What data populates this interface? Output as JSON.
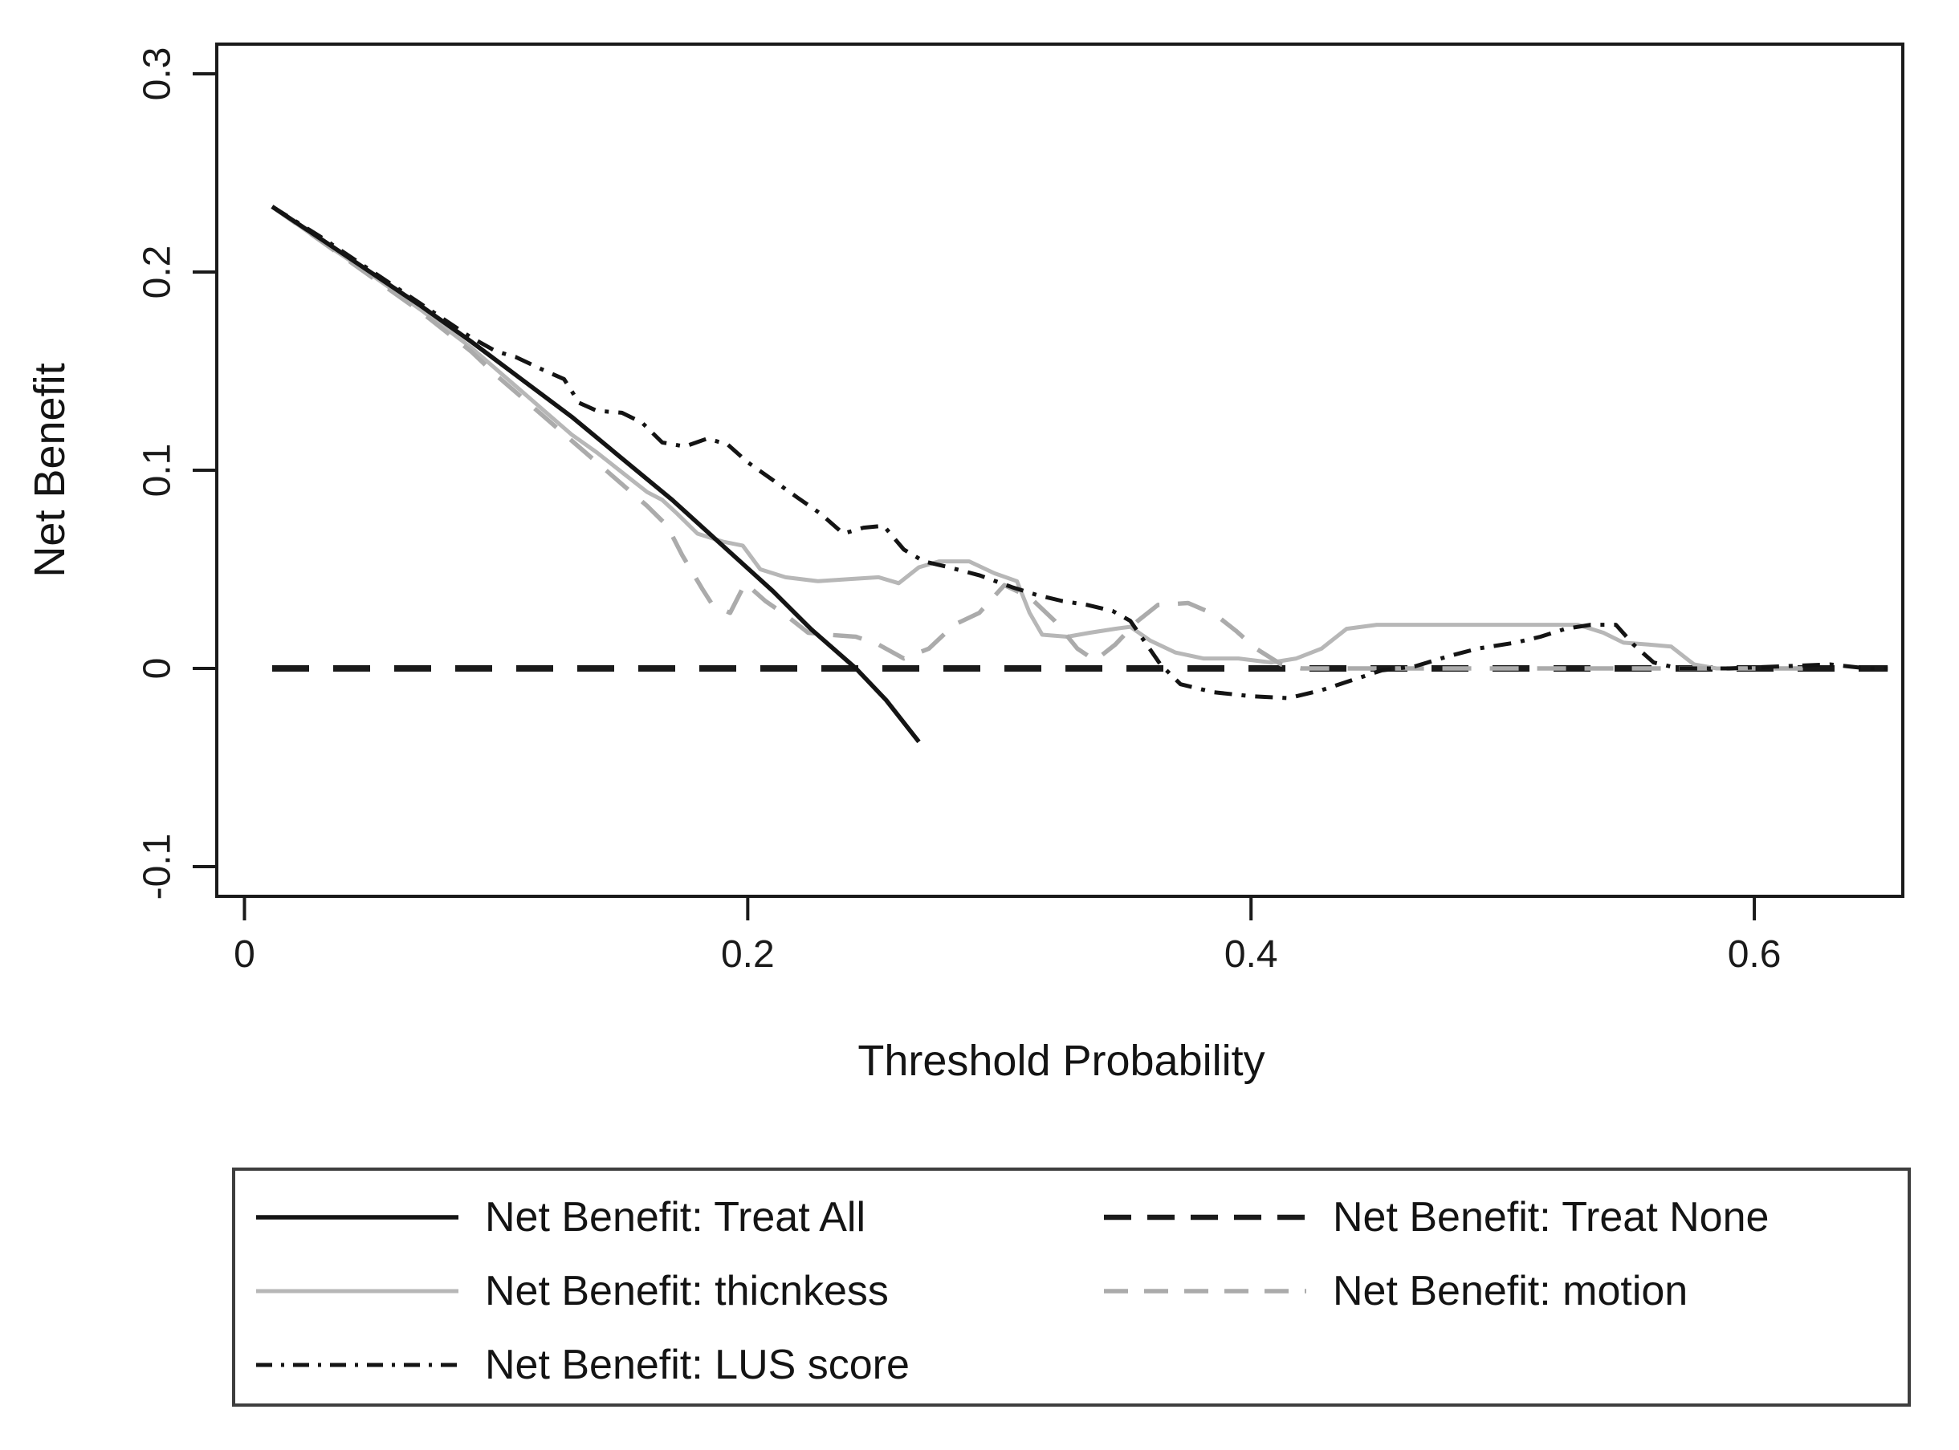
{
  "chart_data": {
    "type": "line",
    "title": "",
    "xlabel": "Threshold Probability",
    "ylabel": "Net Benefit",
    "grid": false,
    "legend_position": "below-plot, boxed, two columns",
    "frame_color": "#1a1a1a",
    "x_axis": {
      "min": -0.011,
      "max": 0.659,
      "ticks": [
        0,
        0.2,
        0.4,
        0.6
      ],
      "tick_labels": [
        "0",
        "0.2",
        "0.4",
        "0.6"
      ]
    },
    "y_axis": {
      "min": -0.115,
      "max": 0.315,
      "ticks": [
        0.3,
        0.2,
        0.1,
        0,
        -0.1
      ],
      "tick_labels": [
        "0.3",
        "0.2",
        "0.1",
        "0",
        "-0.1"
      ]
    },
    "draw_order": [
      1,
      2,
      3,
      0,
      4
    ],
    "series": [
      {
        "id": "treat-all",
        "name": "Net Benefit: Treat All",
        "line_style": "solid",
        "color": "#141414",
        "width": 5.5,
        "points": [
          [
            0.011,
            0.233
          ],
          [
            0.03,
            0.217
          ],
          [
            0.05,
            0.2
          ],
          [
            0.07,
            0.183
          ],
          [
            0.09,
            0.165
          ],
          [
            0.11,
            0.146
          ],
          [
            0.13,
            0.127
          ],
          [
            0.15,
            0.106
          ],
          [
            0.17,
            0.085
          ],
          [
            0.19,
            0.062
          ],
          [
            0.21,
            0.039
          ],
          [
            0.225,
            0.02
          ],
          [
            0.243,
            0.0
          ],
          [
            0.255,
            -0.016
          ],
          [
            0.268,
            -0.037
          ]
        ]
      },
      {
        "id": "treat-none",
        "name": "Net Benefit: Treat None",
        "line_style": "dashed",
        "color": "#1a1a1a",
        "width": 8,
        "dasharray": "46 30",
        "legend_dasharray": "34 20",
        "points": [
          [
            0.011,
            0.0
          ],
          [
            0.653,
            0.0
          ]
        ]
      },
      {
        "id": "thickness",
        "name": "Net Benefit: thicnkess",
        "line_style": "solid",
        "color": "#b7b7b7",
        "width": 5,
        "points": [
          [
            0.011,
            0.233
          ],
          [
            0.03,
            0.216
          ],
          [
            0.05,
            0.199
          ],
          [
            0.07,
            0.181
          ],
          [
            0.09,
            0.162
          ],
          [
            0.1,
            0.151
          ],
          [
            0.11,
            0.14
          ],
          [
            0.12,
            0.129
          ],
          [
            0.13,
            0.118
          ],
          [
            0.14,
            0.109
          ],
          [
            0.15,
            0.099
          ],
          [
            0.16,
            0.089
          ],
          [
            0.166,
            0.085
          ],
          [
            0.172,
            0.078
          ],
          [
            0.18,
            0.068
          ],
          [
            0.19,
            0.064
          ],
          [
            0.198,
            0.062
          ],
          [
            0.205,
            0.05
          ],
          [
            0.215,
            0.046
          ],
          [
            0.228,
            0.044
          ],
          [
            0.24,
            0.045
          ],
          [
            0.252,
            0.046
          ],
          [
            0.26,
            0.043
          ],
          [
            0.268,
            0.051
          ],
          [
            0.276,
            0.054
          ],
          [
            0.288,
            0.054
          ],
          [
            0.298,
            0.048
          ],
          [
            0.307,
            0.044
          ],
          [
            0.312,
            0.028
          ],
          [
            0.317,
            0.017
          ],
          [
            0.327,
            0.016
          ],
          [
            0.336,
            0.018
          ],
          [
            0.346,
            0.02
          ],
          [
            0.352,
            0.021
          ],
          [
            0.36,
            0.014
          ],
          [
            0.37,
            0.008
          ],
          [
            0.381,
            0.005
          ],
          [
            0.395,
            0.005
          ],
          [
            0.408,
            0.003
          ],
          [
            0.418,
            0.005
          ],
          [
            0.428,
            0.01
          ],
          [
            0.438,
            0.02
          ],
          [
            0.45,
            0.022
          ],
          [
            0.47,
            0.022
          ],
          [
            0.49,
            0.022
          ],
          [
            0.51,
            0.022
          ],
          [
            0.53,
            0.022
          ],
          [
            0.54,
            0.018
          ],
          [
            0.548,
            0.013
          ],
          [
            0.558,
            0.012
          ],
          [
            0.567,
            0.011
          ],
          [
            0.576,
            0.002
          ],
          [
            0.585,
            0.0
          ],
          [
            0.6,
            0.0
          ]
        ]
      },
      {
        "id": "motion",
        "name": "Net Benefit: motion",
        "line_style": "dashed",
        "color": "#ababab",
        "width": 5.5,
        "dasharray": "36 23",
        "legend_dasharray": "30 20",
        "points": [
          [
            0.011,
            0.233
          ],
          [
            0.03,
            0.216
          ],
          [
            0.05,
            0.198
          ],
          [
            0.07,
            0.18
          ],
          [
            0.09,
            0.16
          ],
          [
            0.1,
            0.148
          ],
          [
            0.11,
            0.137
          ],
          [
            0.12,
            0.126
          ],
          [
            0.13,
            0.115
          ],
          [
            0.14,
            0.104
          ],
          [
            0.15,
            0.093
          ],
          [
            0.16,
            0.082
          ],
          [
            0.168,
            0.072
          ],
          [
            0.174,
            0.057
          ],
          [
            0.182,
            0.04
          ],
          [
            0.186,
            0.032
          ],
          [
            0.193,
            0.028
          ],
          [
            0.199,
            0.043
          ],
          [
            0.207,
            0.034
          ],
          [
            0.215,
            0.027
          ],
          [
            0.224,
            0.018
          ],
          [
            0.232,
            0.017
          ],
          [
            0.243,
            0.016
          ],
          [
            0.252,
            0.012
          ],
          [
            0.262,
            0.005
          ],
          [
            0.272,
            0.01
          ],
          [
            0.282,
            0.022
          ],
          [
            0.292,
            0.028
          ],
          [
            0.302,
            0.042
          ],
          [
            0.312,
            0.036
          ],
          [
            0.322,
            0.024
          ],
          [
            0.331,
            0.01
          ],
          [
            0.338,
            0.004
          ],
          [
            0.346,
            0.012
          ],
          [
            0.355,
            0.024
          ],
          [
            0.363,
            0.032
          ],
          [
            0.375,
            0.033
          ],
          [
            0.386,
            0.027
          ],
          [
            0.394,
            0.019
          ],
          [
            0.402,
            0.01
          ],
          [
            0.412,
            0.002
          ],
          [
            0.42,
            0.0
          ],
          [
            0.46,
            0.0
          ],
          [
            0.52,
            0.0
          ],
          [
            0.58,
            0.0
          ],
          [
            0.62,
            0.0
          ]
        ]
      },
      {
        "id": "lus-score",
        "name": "Net Benefit: LUS score",
        "line_style": "dash-dot",
        "color": "#141414",
        "width": 5,
        "dasharray": "22 12 5 12",
        "legend_dasharray": "20 11 4 11",
        "points": [
          [
            0.011,
            0.233
          ],
          [
            0.03,
            0.218
          ],
          [
            0.05,
            0.201
          ],
          [
            0.07,
            0.184
          ],
          [
            0.09,
            0.167
          ],
          [
            0.1,
            0.16
          ],
          [
            0.108,
            0.157
          ],
          [
            0.118,
            0.151
          ],
          [
            0.127,
            0.146
          ],
          [
            0.133,
            0.134
          ],
          [
            0.14,
            0.13
          ],
          [
            0.15,
            0.129
          ],
          [
            0.158,
            0.124
          ],
          [
            0.166,
            0.114
          ],
          [
            0.175,
            0.112
          ],
          [
            0.184,
            0.116
          ],
          [
            0.192,
            0.113
          ],
          [
            0.2,
            0.104
          ],
          [
            0.21,
            0.095
          ],
          [
            0.22,
            0.086
          ],
          [
            0.229,
            0.078
          ],
          [
            0.238,
            0.068
          ],
          [
            0.246,
            0.071
          ],
          [
            0.254,
            0.072
          ],
          [
            0.262,
            0.06
          ],
          [
            0.27,
            0.054
          ],
          [
            0.28,
            0.051
          ],
          [
            0.292,
            0.047
          ],
          [
            0.305,
            0.041
          ],
          [
            0.315,
            0.037
          ],
          [
            0.325,
            0.034
          ],
          [
            0.335,
            0.032
          ],
          [
            0.345,
            0.029
          ],
          [
            0.352,
            0.024
          ],
          [
            0.358,
            0.013
          ],
          [
            0.364,
            0.002
          ],
          [
            0.372,
            -0.008
          ],
          [
            0.385,
            -0.012
          ],
          [
            0.4,
            -0.014
          ],
          [
            0.415,
            -0.015
          ],
          [
            0.428,
            -0.011
          ],
          [
            0.44,
            -0.006
          ],
          [
            0.452,
            -0.001
          ],
          [
            0.465,
            0.001
          ],
          [
            0.478,
            0.006
          ],
          [
            0.49,
            0.01
          ],
          [
            0.505,
            0.013
          ],
          [
            0.515,
            0.016
          ],
          [
            0.525,
            0.02
          ],
          [
            0.535,
            0.022
          ],
          [
            0.545,
            0.022
          ],
          [
            0.552,
            0.012
          ],
          [
            0.56,
            0.003
          ],
          [
            0.57,
            0.0
          ],
          [
            0.59,
            0.0
          ],
          [
            0.61,
            0.001
          ],
          [
            0.63,
            0.002
          ],
          [
            0.645,
            0.0
          ],
          [
            0.653,
            0.0
          ]
        ]
      }
    ]
  }
}
